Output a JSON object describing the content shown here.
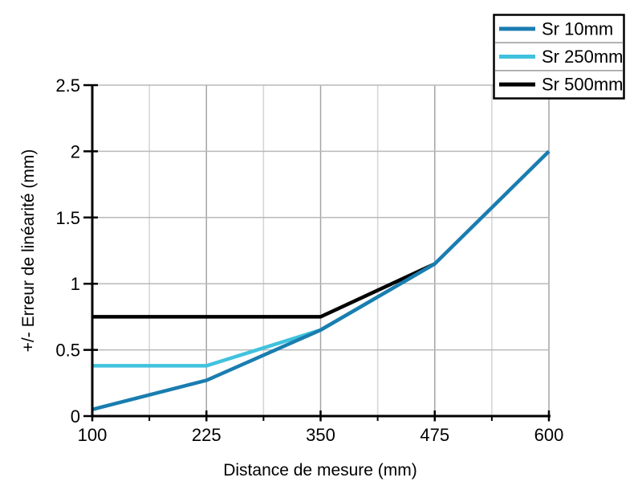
{
  "chart_data": {
    "type": "line",
    "title": "",
    "xlabel": "Distance de mesure (mm)",
    "ylabel": "+/- Erreur de linéarité (mm)",
    "xlim": [
      100,
      600
    ],
    "ylim": [
      0,
      2.5
    ],
    "x_ticks": [
      100,
      225,
      350,
      475,
      600
    ],
    "x_tick_labels": [
      "100",
      "225",
      "350",
      "475",
      "600"
    ],
    "x_minor_ticks": [
      162.5,
      287.5,
      412.5,
      537.5
    ],
    "y_ticks": [
      0,
      0.5,
      1,
      1.5,
      2,
      2.5
    ],
    "y_tick_labels": [
      "0",
      "0.5",
      "1",
      "1.5",
      "2",
      "2.5"
    ],
    "grid": true,
    "legend_position": "top-right",
    "legend_entries": [
      "Sr 10mm",
      "Sr 250mm",
      "Sr 500mm"
    ],
    "series": [
      {
        "name": "Sr 10mm",
        "color": "#1a7db0",
        "x": [
          100,
          225,
          350,
          475,
          600
        ],
        "y": [
          0.05,
          0.27,
          0.65,
          1.15,
          2.0
        ]
      },
      {
        "name": "Sr 250mm",
        "color": "#40c2de",
        "x": [
          100,
          225,
          350,
          475
        ],
        "y": [
          0.38,
          0.38,
          0.65,
          1.15
        ]
      },
      {
        "name": "Sr 500mm",
        "color": "#000000",
        "x": [
          100,
          350,
          475
        ],
        "y": [
          0.75,
          0.75,
          1.15
        ]
      }
    ]
  },
  "colors": {
    "background": "#ffffff",
    "axis": "#000000",
    "tick": "#000000",
    "grid_horizontal": "#b9b9b9",
    "grid_major_vertical": "#a4a4a4",
    "grid_minor_vertical": "#d4d4d4",
    "text": "#000000",
    "legend_background": "#ffffff",
    "legend_border": "#000000",
    "legend_divider": "#9a9a9a"
  }
}
